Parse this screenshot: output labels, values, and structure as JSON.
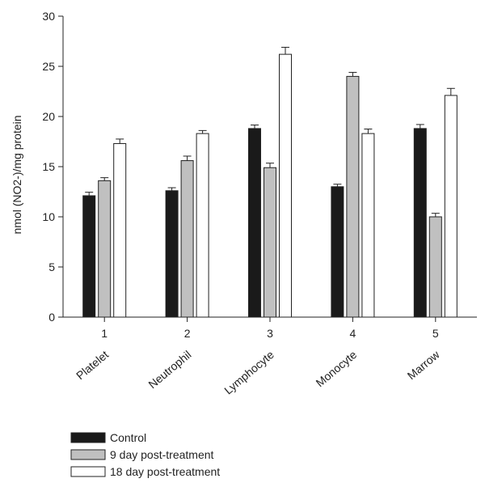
{
  "chart_data": {
    "type": "bar",
    "title": "",
    "xlabel": "",
    "ylabel": "nmol (NO2-)/mg protein",
    "ylim": [
      0,
      30
    ],
    "yticks": [
      0,
      5,
      10,
      15,
      20,
      25,
      30
    ],
    "x_ticks": [
      "1",
      "2",
      "3",
      "4",
      "5"
    ],
    "categories": [
      "Platelet",
      "Neutrophil",
      "Lymphocyte",
      "Monocyte",
      "Marrow"
    ],
    "series": [
      {
        "name": "Control",
        "color": "#1a1a1a",
        "values": [
          12.1,
          12.6,
          18.8,
          13.0,
          18.8
        ],
        "errors": [
          0.35,
          0.3,
          0.35,
          0.25,
          0.4
        ]
      },
      {
        "name": "9 day post-treatment",
        "color": "#c0c0c0",
        "values": [
          13.6,
          15.6,
          14.9,
          24.0,
          10.0
        ],
        "errors": [
          0.3,
          0.45,
          0.45,
          0.4,
          0.35
        ]
      },
      {
        "name": "18 day post-treatment",
        "color": "#ffffff",
        "values": [
          17.3,
          18.3,
          26.2,
          18.3,
          22.1
        ],
        "errors": [
          0.45,
          0.3,
          0.7,
          0.45,
          0.7
        ]
      }
    ],
    "legend_position": "bottom-left",
    "grid": false
  }
}
